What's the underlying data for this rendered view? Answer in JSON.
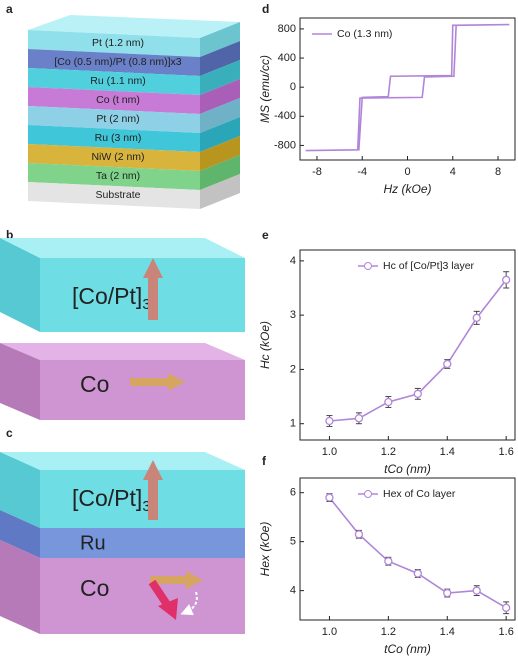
{
  "panel_labels": [
    "a",
    "b",
    "c",
    "d",
    "e",
    "f"
  ],
  "layer_stack": [
    "Pt (1.2 nm)",
    "[Co (0.5 nm)/Pt (0.8 nm)]x3",
    "Ru (1.1 nm)",
    "Co (t nm)",
    "Pt (2 nm)",
    "Ru (3 nm)",
    "NiW (2 nm)",
    "Ta (2 nm)",
    "Substrate"
  ],
  "diagram_b": {
    "top_label": {
      "text": "[Co/Pt]",
      "subscript": "3"
    },
    "bottom_label": "Co"
  },
  "diagram_c": {
    "top_label": {
      "text": "[Co/Pt]",
      "subscript": "3"
    },
    "middle_label": "Ru",
    "bottom_label": "Co"
  },
  "chart_data": [
    {
      "type": "line",
      "x_label": "Hz (kOe)",
      "y_label": "MS (emu/cc)",
      "x": [
        9,
        4.0,
        3.9,
        -1.5,
        -1.7,
        -4.0,
        -4.3,
        -9,
        -9,
        -4.4,
        -4.2,
        1.3,
        1.5,
        4.1,
        4.3,
        9
      ],
      "series": [
        {
          "name": "Co (1.3 nm)",
          "color": "#b185d9",
          "values": [
            860,
            850,
            160,
            150,
            -130,
            -140,
            -860,
            -870,
            -870,
            -860,
            -150,
            -140,
            140,
            150,
            850,
            860
          ]
        }
      ],
      "xlim": [
        -9.5,
        9.5
      ],
      "xticks": [
        -8,
        -4,
        0,
        4,
        8
      ],
      "ylim": [
        -1000,
        950
      ],
      "yticks": [
        -800,
        -400,
        0,
        400,
        800
      ],
      "markers": false,
      "legend": "upper left"
    },
    {
      "type": "line",
      "x_label": "tCo (nm)",
      "y_label": "Hc (kOe)",
      "x": [
        1.0,
        1.1,
        1.2,
        1.3,
        1.4,
        1.5,
        1.6
      ],
      "series": [
        {
          "name": "Hc of [Co/Pt]3 layer",
          "color": "#b185d9",
          "values": [
            1.05,
            1.1,
            1.4,
            1.55,
            2.1,
            2.95,
            3.65
          ],
          "errors": [
            0.1,
            0.1,
            0.1,
            0.1,
            0.08,
            0.12,
            0.15
          ]
        }
      ],
      "xlim": [
        0.9,
        1.63
      ],
      "xticks": [
        {
          "value": 1,
          "label": "1.0"
        },
        1.2,
        1.4,
        1.6
      ],
      "ylim": [
        0.7,
        4.2
      ],
      "yticks": [
        1,
        2,
        3,
        4
      ],
      "markers": true,
      "legend": "upper right"
    },
    {
      "type": "line",
      "x_label": "tCo (nm)",
      "y_label": "Hex (kOe)",
      "x": [
        1.0,
        1.1,
        1.2,
        1.3,
        1.4,
        1.5,
        1.6
      ],
      "series": [
        {
          "name": "Hex of Co layer",
          "color": "#b185d9",
          "values": [
            5.9,
            5.15,
            4.6,
            4.35,
            3.95,
            4.0,
            3.65
          ],
          "errors": [
            0.08,
            0.08,
            0.08,
            0.08,
            0.08,
            0.1,
            0.12
          ]
        }
      ],
      "xlim": [
        0.9,
        1.63
      ],
      "xticks": [
        {
          "value": 1,
          "label": "1.0"
        },
        1.2,
        1.4,
        1.6
      ],
      "ylim": [
        3.4,
        6.3
      ],
      "yticks": [
        4,
        5,
        6
      ],
      "markers": true,
      "legend": "upper right"
    }
  ]
}
